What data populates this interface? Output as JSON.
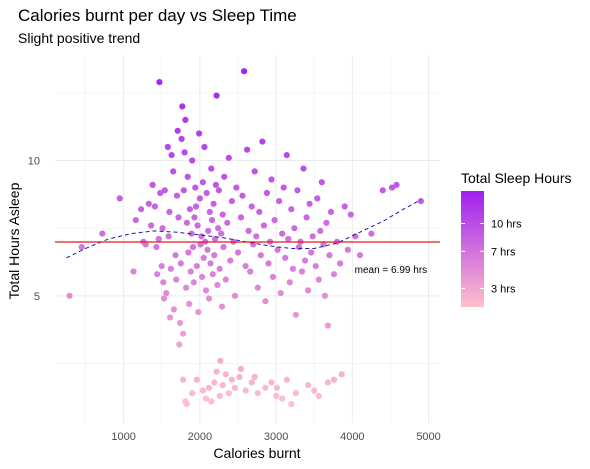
{
  "chart_data": {
    "type": "scatter",
    "title": "Calories burnt per day vs Sleep Time",
    "subtitle": "Slight positive trend",
    "xlabel": "Calories burnt",
    "ylabel": "Total Hours Asleep",
    "xlim": [
      100,
      5150
    ],
    "ylim": [
      0.3,
      13.9
    ],
    "x_ticks": [
      1000,
      2000,
      3000,
      4000,
      5000
    ],
    "y_ticks": [
      5,
      10
    ],
    "grid": true,
    "mean_line": {
      "y": 6.99,
      "label": "mean = 6.99 hrs",
      "color": "#e41a1c",
      "label_x": 4030
    },
    "trend": {
      "style": "dashed",
      "color": "#1a1aa6",
      "points": [
        [
          250,
          6.4
        ],
        [
          500,
          6.75
        ],
        [
          800,
          7.1
        ],
        [
          1100,
          7.3
        ],
        [
          1400,
          7.4
        ],
        [
          1700,
          7.35
        ],
        [
          2000,
          7.25
        ],
        [
          2300,
          7.15
        ],
        [
          2600,
          7.0
        ],
        [
          2900,
          6.85
        ],
        [
          3200,
          6.75
        ],
        [
          3500,
          6.75
        ],
        [
          3800,
          6.95
        ],
        [
          4100,
          7.35
        ],
        [
          4400,
          7.75
        ],
        [
          4700,
          8.25
        ],
        [
          4900,
          8.55
        ]
      ]
    },
    "legend": {
      "title": "Total Sleep Hours",
      "placement": "right",
      "labels": [
        "10 hrs",
        "7 hrs",
        "3 hrs"
      ],
      "label_values": [
        10,
        7,
        3
      ],
      "range": [
        1,
        13.5
      ],
      "color_low": "#ffc0cb",
      "color_high": "#a020f0"
    },
    "series": [
      {
        "points": [
          [
            290,
            5.0
          ],
          [
            450,
            6.8
          ],
          [
            720,
            7.3
          ],
          [
            950,
            8.6
          ],
          [
            1130,
            5.9
          ],
          [
            1160,
            7.8
          ],
          [
            1230,
            8.2
          ],
          [
            1260,
            7.0
          ],
          [
            1290,
            6.9
          ],
          [
            1330,
            8.4
          ],
          [
            1360,
            7.6
          ],
          [
            1380,
            9.1
          ],
          [
            1410,
            8.3
          ],
          [
            1430,
            6.8
          ],
          [
            1440,
            5.8
          ],
          [
            1460,
            7.1
          ],
          [
            1470,
            12.9
          ],
          [
            1480,
            8.8
          ],
          [
            1500,
            6.1
          ],
          [
            1510,
            7.5
          ],
          [
            1520,
            5.5
          ],
          [
            1530,
            4.9
          ],
          [
            1540,
            8.9
          ],
          [
            1560,
            5.1
          ],
          [
            1580,
            10.5
          ],
          [
            1590,
            7.2
          ],
          [
            1600,
            8.1
          ],
          [
            1610,
            4.2
          ],
          [
            1620,
            6.0
          ],
          [
            1630,
            10.2
          ],
          [
            1650,
            9.6
          ],
          [
            1660,
            4.5
          ],
          [
            1680,
            6.5
          ],
          [
            1690,
            5.6
          ],
          [
            1700,
            8.7
          ],
          [
            1710,
            11.1
          ],
          [
            1720,
            7.9
          ],
          [
            1730,
            3.2
          ],
          [
            1740,
            4.0
          ],
          [
            1750,
            6.2
          ],
          [
            1760,
            10.8
          ],
          [
            1770,
            12.0
          ],
          [
            1780,
            3.6
          ],
          [
            1790,
            8.9
          ],
          [
            1800,
            10.3
          ],
          [
            1810,
            11.5
          ],
          [
            1820,
            5.3
          ],
          [
            1830,
            7.7
          ],
          [
            1840,
            9.4
          ],
          [
            1850,
            6.6
          ],
          [
            1860,
            4.7
          ],
          [
            1870,
            8.2
          ],
          [
            1880,
            5.9
          ],
          [
            1890,
            7.3
          ],
          [
            1900,
            10.0
          ],
          [
            1910,
            6.8
          ],
          [
            1920,
            5.5
          ],
          [
            1930,
            7.9
          ],
          [
            1940,
            9.0
          ],
          [
            1950,
            8.3
          ],
          [
            1960,
            6.1
          ],
          [
            1970,
            7.6
          ],
          [
            1980,
            4.4
          ],
          [
            1990,
            11.0
          ],
          [
            2000,
            8.6
          ],
          [
            2010,
            6.9
          ],
          [
            2020,
            7.2
          ],
          [
            2030,
            5.7
          ],
          [
            2040,
            9.2
          ],
          [
            2050,
            6.4
          ],
          [
            2060,
            10.5
          ],
          [
            2070,
            7.0
          ],
          [
            2080,
            5.2
          ],
          [
            2090,
            8.8
          ],
          [
            2100,
            6.7
          ],
          [
            2110,
            7.4
          ],
          [
            2120,
            4.9
          ],
          [
            2130,
            8.1
          ],
          [
            2140,
            6.2
          ],
          [
            2150,
            9.7
          ],
          [
            2160,
            7.8
          ],
          [
            2170,
            5.8
          ],
          [
            2180,
            8.4
          ],
          [
            2190,
            6.5
          ],
          [
            2200,
            7.1
          ],
          [
            2210,
            9.1
          ],
          [
            2220,
            12.4
          ],
          [
            2230,
            5.4
          ],
          [
            2240,
            7.5
          ],
          [
            2250,
            8.9
          ],
          [
            2260,
            6.0
          ],
          [
            2270,
            2.6
          ],
          [
            2280,
            7.3
          ],
          [
            2290,
            4.6
          ],
          [
            2300,
            8.0
          ],
          [
            2310,
            6.8
          ],
          [
            2320,
            9.4
          ],
          [
            2340,
            5.6
          ],
          [
            2360,
            7.7
          ],
          [
            2380,
            10.1
          ],
          [
            2400,
            6.3
          ],
          [
            2420,
            8.5
          ],
          [
            2440,
            7.0
          ],
          [
            2460,
            5.0
          ],
          [
            2480,
            9.0
          ],
          [
            2500,
            6.6
          ],
          [
            2520,
            2.0
          ],
          [
            2540,
            7.9
          ],
          [
            2560,
            8.7
          ],
          [
            2580,
            13.3
          ],
          [
            2600,
            6.1
          ],
          [
            2620,
            10.4
          ],
          [
            2640,
            7.4
          ],
          [
            2660,
            5.9
          ],
          [
            2680,
            8.3
          ],
          [
            2700,
            6.9
          ],
          [
            2720,
            9.6
          ],
          [
            2740,
            7.2
          ],
          [
            2760,
            5.3
          ],
          [
            2780,
            8.1
          ],
          [
            2800,
            6.5
          ],
          [
            2820,
            10.7
          ],
          [
            2840,
            7.6
          ],
          [
            2860,
            4.8
          ],
          [
            2880,
            8.8
          ],
          [
            2900,
            6.2
          ],
          [
            2920,
            7.0
          ],
          [
            2940,
            9.3
          ],
          [
            2960,
            5.7
          ],
          [
            2980,
            7.8
          ],
          [
            3000,
            1.3
          ],
          [
            3010,
            1.6
          ],
          [
            3020,
            6.7
          ],
          [
            3040,
            8.5
          ],
          [
            3060,
            5.1
          ],
          [
            3080,
            7.3
          ],
          [
            3100,
            9.0
          ],
          [
            3120,
            6.4
          ],
          [
            3140,
            10.2
          ],
          [
            3160,
            7.1
          ],
          [
            3180,
            5.5
          ],
          [
            3200,
            8.2
          ],
          [
            3220,
            6.0
          ],
          [
            3240,
            7.5
          ],
          [
            3260,
            4.3
          ],
          [
            3280,
            8.9
          ],
          [
            3300,
            6.8
          ],
          [
            3320,
            7.0
          ],
          [
            3340,
            5.9
          ],
          [
            3360,
            9.7
          ],
          [
            3380,
            6.3
          ],
          [
            3400,
            7.9
          ],
          [
            3420,
            5.2
          ],
          [
            3440,
            8.4
          ],
          [
            3460,
            6.6
          ],
          [
            3480,
            7.2
          ],
          [
            3500,
            1.5
          ],
          [
            3520,
            6.1
          ],
          [
            3540,
            8.6
          ],
          [
            3560,
            5.6
          ],
          [
            3580,
            7.4
          ],
          [
            3600,
            9.2
          ],
          [
            3620,
            6.9
          ],
          [
            3640,
            5.0
          ],
          [
            3660,
            7.7
          ],
          [
            3680,
            3.9
          ],
          [
            3700,
            6.5
          ],
          [
            3720,
            8.1
          ],
          [
            3760,
            5.8
          ],
          [
            3800,
            7.0
          ],
          [
            3840,
            6.2
          ],
          [
            3860,
            2.1
          ],
          [
            3900,
            8.3
          ],
          [
            3940,
            6.7
          ],
          [
            3980,
            8.0
          ],
          [
            4040,
            7.2
          ],
          [
            4100,
            6.5
          ],
          [
            4250,
            7.3
          ],
          [
            4400,
            8.9
          ],
          [
            4520,
            9.0
          ],
          [
            4580,
            9.1
          ],
          [
            4900,
            8.5
          ],
          [
            1780,
            1.9
          ],
          [
            1810,
            1.1
          ],
          [
            1830,
            1.0
          ],
          [
            1900,
            1.4
          ],
          [
            1960,
            1.9
          ],
          [
            2040,
            1.5
          ],
          [
            2080,
            1.2
          ],
          [
            2120,
            1.6
          ],
          [
            2150,
            1.1
          ],
          [
            2190,
            1.8
          ],
          [
            2220,
            2.2
          ],
          [
            2260,
            1.3
          ],
          [
            2300,
            1.7
          ],
          [
            2340,
            2.1
          ],
          [
            2380,
            1.4
          ],
          [
            2420,
            1.9
          ],
          [
            2460,
            1.6
          ],
          [
            2540,
            2.3
          ],
          [
            2600,
            1.5
          ],
          [
            2680,
            1.8
          ],
          [
            2720,
            2.0
          ],
          [
            2760,
            1.4
          ],
          [
            2860,
            1.6
          ],
          [
            2940,
            1.8
          ],
          [
            3080,
            1.2
          ],
          [
            3140,
            1.9
          ],
          [
            3200,
            1.0
          ],
          [
            3260,
            1.4
          ],
          [
            3420,
            1.7
          ],
          [
            3560,
            1.3
          ],
          [
            3680,
            1.8
          ],
          [
            3760,
            1.9
          ]
        ]
      }
    ]
  }
}
